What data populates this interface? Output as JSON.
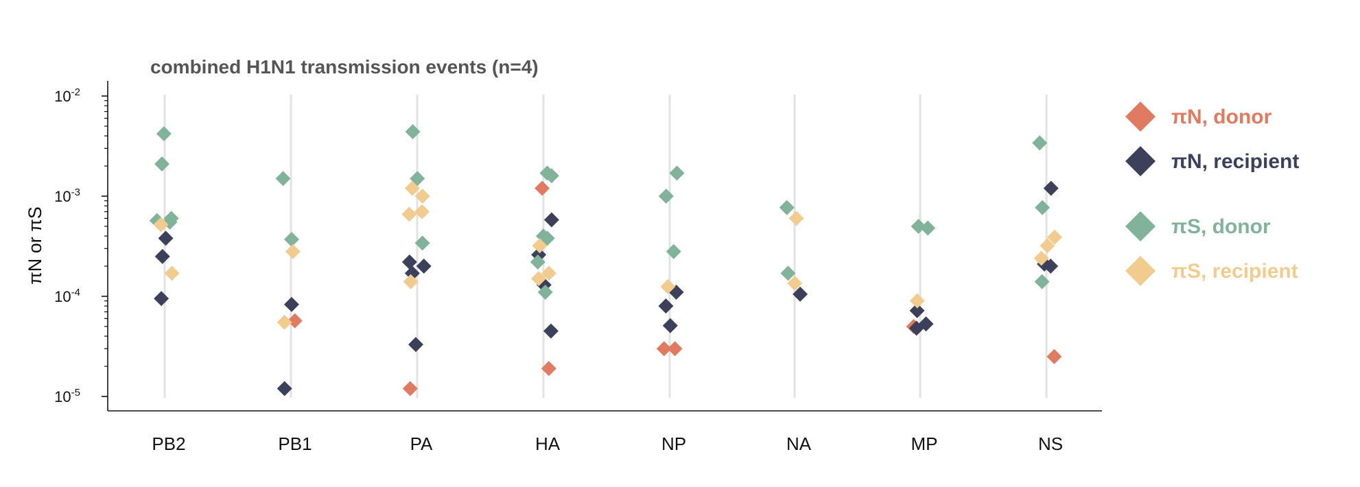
{
  "chart_data": {
    "type": "scatter",
    "title": "combined H1N1 transmission events (n=4)",
    "xlabel": "",
    "ylabel": "πN or πS",
    "yscale": "log",
    "ylim": [
      8.5e-06,
      0.014
    ],
    "yticks": [
      {
        "value": 1e-05,
        "base": "10",
        "exp": "-5"
      },
      {
        "value": 0.0001,
        "base": "10",
        "exp": "-4"
      },
      {
        "value": 0.001,
        "base": "10",
        "exp": "-3"
      },
      {
        "value": 0.01,
        "base": "10",
        "exp": "-2"
      }
    ],
    "categories": [
      "PB2",
      "PB1",
      "PA",
      "HA",
      "NP",
      "NA",
      "MP",
      "NS"
    ],
    "grid": "vertical gridline per category",
    "legend_position": "right",
    "series": [
      {
        "name": "πN, donor",
        "color": "#E07B62",
        "points": [
          {
            "category": "PB1",
            "y": 5.7e-05
          },
          {
            "category": "PA",
            "y": 1.2e-05
          },
          {
            "category": "HA",
            "y": 0.0012
          },
          {
            "category": "HA",
            "y": 1.9e-05
          },
          {
            "category": "NP",
            "y": 3e-05
          },
          {
            "category": "NP",
            "y": 3e-05
          },
          {
            "category": "MP",
            "y": 5e-05
          },
          {
            "category": "NS",
            "y": 2.5e-05
          }
        ]
      },
      {
        "name": "πN, recipient",
        "color": "#3D405B",
        "points": [
          {
            "category": "PB2",
            "y": 0.00038
          },
          {
            "category": "PB2",
            "y": 0.00025
          },
          {
            "category": "PB2",
            "y": 9.5e-05
          },
          {
            "category": "PB1",
            "y": 8.3e-05
          },
          {
            "category": "PB1",
            "y": 1.2e-05
          },
          {
            "category": "PA",
            "y": 0.00022
          },
          {
            "category": "PA",
            "y": 0.0002
          },
          {
            "category": "PA",
            "y": 0.00017
          },
          {
            "category": "PA",
            "y": 3.3e-05
          },
          {
            "category": "HA",
            "y": 0.00058
          },
          {
            "category": "HA",
            "y": 0.00026
          },
          {
            "category": "HA",
            "y": 0.00013
          },
          {
            "category": "HA",
            "y": 4.5e-05
          },
          {
            "category": "NP",
            "y": 0.00011
          },
          {
            "category": "NP",
            "y": 8e-05
          },
          {
            "category": "NP",
            "y": 5.1e-05
          },
          {
            "category": "NA",
            "y": 0.000105
          },
          {
            "category": "MP",
            "y": 7.2e-05
          },
          {
            "category": "MP",
            "y": 5.3e-05
          },
          {
            "category": "MP",
            "y": 4.8e-05
          },
          {
            "category": "NS",
            "y": 0.0012
          },
          {
            "category": "NS",
            "y": 0.00021
          },
          {
            "category": "NS",
            "y": 0.0002
          }
        ]
      },
      {
        "name": "πS, donor",
        "color": "#81B29A",
        "points": [
          {
            "category": "PB2",
            "y": 0.0042
          },
          {
            "category": "PB2",
            "y": 0.0021
          },
          {
            "category": "PB2",
            "y": 0.0006
          },
          {
            "category": "PB2",
            "y": 0.00057
          },
          {
            "category": "PB2",
            "y": 0.00055
          },
          {
            "category": "PB1",
            "y": 0.0015
          },
          {
            "category": "PB1",
            "y": 0.00037
          },
          {
            "category": "PA",
            "y": 0.0044
          },
          {
            "category": "PA",
            "y": 0.0015
          },
          {
            "category": "PA",
            "y": 0.00034
          },
          {
            "category": "HA",
            "y": 0.0017
          },
          {
            "category": "HA",
            "y": 0.0016
          },
          {
            "category": "HA",
            "y": 0.0004
          },
          {
            "category": "HA",
            "y": 0.00038
          },
          {
            "category": "HA",
            "y": 0.00022
          },
          {
            "category": "HA",
            "y": 0.00011
          },
          {
            "category": "NP",
            "y": 0.0017
          },
          {
            "category": "NP",
            "y": 0.001
          },
          {
            "category": "NP",
            "y": 0.00028
          },
          {
            "category": "NA",
            "y": 0.00077
          },
          {
            "category": "NA",
            "y": 0.00017
          },
          {
            "category": "MP",
            "y": 0.0005
          },
          {
            "category": "MP",
            "y": 0.00048
          },
          {
            "category": "NS",
            "y": 0.0034
          },
          {
            "category": "NS",
            "y": 0.00077
          },
          {
            "category": "NS",
            "y": 0.00014
          }
        ]
      },
      {
        "name": "πS, recipient",
        "color": "#F2CC8F",
        "points": [
          {
            "category": "PB2",
            "y": 0.00052
          },
          {
            "category": "PB2",
            "y": 0.00017
          },
          {
            "category": "PB1",
            "y": 0.00028
          },
          {
            "category": "PB1",
            "y": 5.5e-05
          },
          {
            "category": "PA",
            "y": 0.0012
          },
          {
            "category": "PA",
            "y": 0.001
          },
          {
            "category": "PA",
            "y": 0.0007
          },
          {
            "category": "PA",
            "y": 0.00066
          },
          {
            "category": "PA",
            "y": 0.00014
          },
          {
            "category": "HA",
            "y": 0.00032
          },
          {
            "category": "HA",
            "y": 0.00017
          },
          {
            "category": "HA",
            "y": 0.00015
          },
          {
            "category": "NP",
            "y": 0.000125
          },
          {
            "category": "NA",
            "y": 0.0006
          },
          {
            "category": "NA",
            "y": 0.000135
          },
          {
            "category": "MP",
            "y": 9e-05
          },
          {
            "category": "NS",
            "y": 0.00039
          },
          {
            "category": "NS",
            "y": 0.00032
          },
          {
            "category": "NS",
            "y": 0.00024
          }
        ]
      }
    ]
  }
}
